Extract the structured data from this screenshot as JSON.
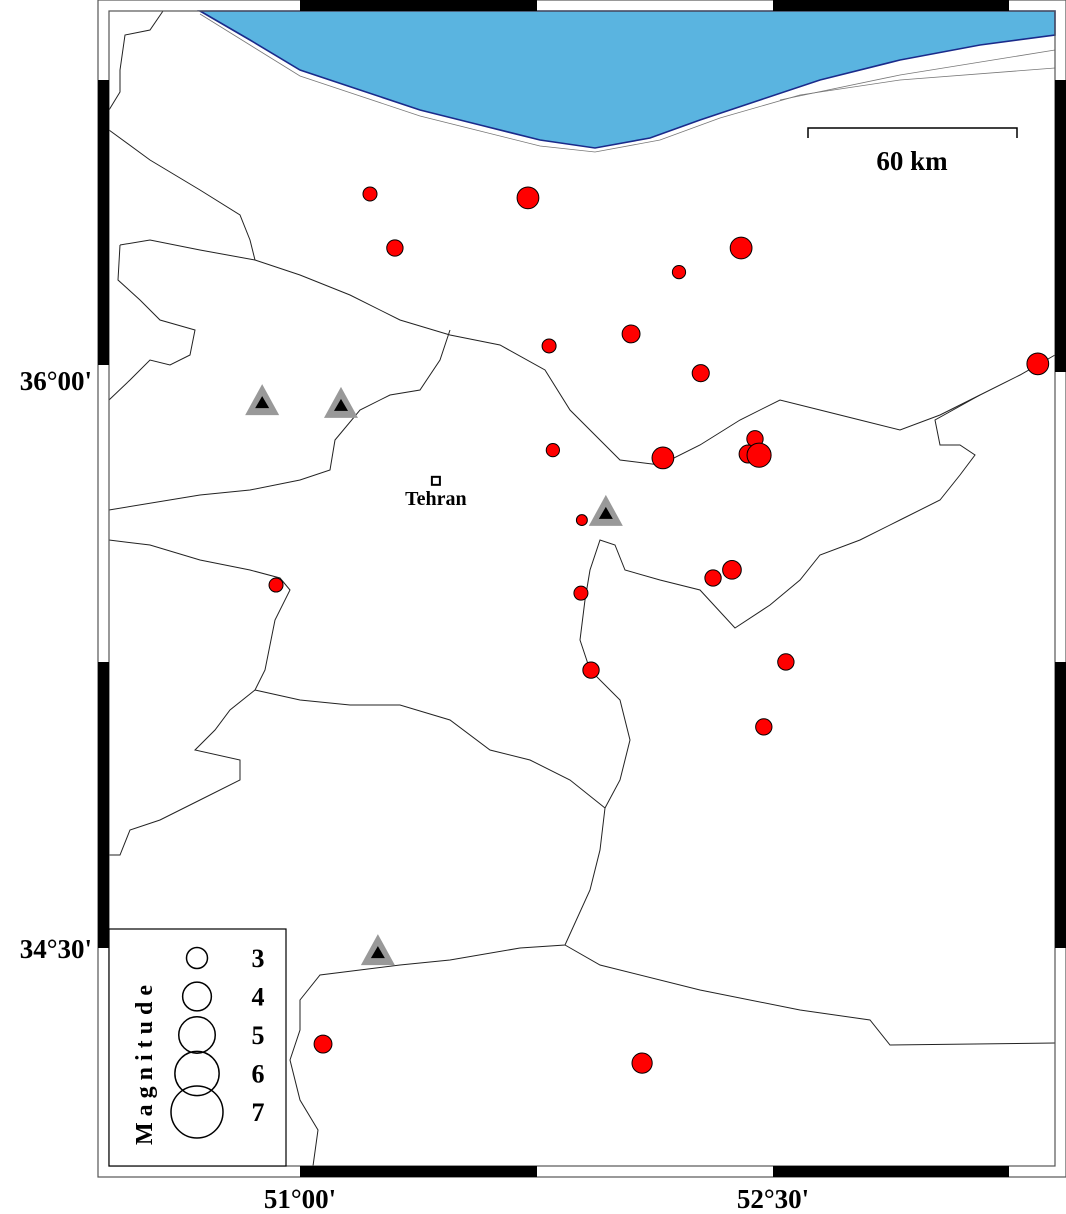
{
  "map": {
    "lon_ticks": [
      {
        "label": "51°00'",
        "value": 51.0
      },
      {
        "label": "52°30'",
        "value": 52.5
      }
    ],
    "lat_ticks": [
      {
        "label": "36°00'",
        "value": 36.0
      },
      {
        "label": "34°30'",
        "value": 34.5
      }
    ],
    "scale_bar": {
      "label": "60 km",
      "length_km": 60
    },
    "city": {
      "name": "Tehran",
      "lon": 51.431,
      "lat": 35.702
    },
    "sea_color": "#5ab4e0",
    "coast_color": "#1a2a8a",
    "event_color": "#ff0000",
    "station_color": "#999999",
    "events": [
      {
        "lon": 51.222,
        "lat": 36.44,
        "mag": 2.1
      },
      {
        "lon": 51.723,
        "lat": 36.43,
        "mag": 3.1
      },
      {
        "lon": 51.301,
        "lat": 36.301,
        "mag": 2.4
      },
      {
        "lon": 52.399,
        "lat": 36.301,
        "mag": 3.1
      },
      {
        "lon": 52.202,
        "lat": 36.239,
        "mag": 2.0
      },
      {
        "lon": 52.05,
        "lat": 36.08,
        "mag": 2.6
      },
      {
        "lon": 51.79,
        "lat": 36.049,
        "mag": 2.1
      },
      {
        "lon": 52.271,
        "lat": 35.979,
        "mag": 2.5
      },
      {
        "lon": 53.34,
        "lat": 36.003,
        "mag": 3.1
      },
      {
        "lon": 51.802,
        "lat": 35.781,
        "mag": 2.0
      },
      {
        "lon": 52.151,
        "lat": 35.761,
        "mag": 3.1
      },
      {
        "lon": 52.443,
        "lat": 35.81,
        "mag": 2.4
      },
      {
        "lon": 52.421,
        "lat": 35.771,
        "mag": 2.6
      },
      {
        "lon": 52.456,
        "lat": 35.768,
        "mag": 3.4
      },
      {
        "lon": 51.894,
        "lat": 35.601,
        "mag": 1.7
      },
      {
        "lon": 52.37,
        "lat": 35.473,
        "mag": 2.7
      },
      {
        "lon": 52.31,
        "lat": 35.452,
        "mag": 2.4
      },
      {
        "lon": 50.924,
        "lat": 35.434,
        "mag": 2.1
      },
      {
        "lon": 51.891,
        "lat": 35.413,
        "mag": 2.1
      },
      {
        "lon": 51.923,
        "lat": 35.215,
        "mag": 2.4
      },
      {
        "lon": 52.541,
        "lat": 35.236,
        "mag": 2.4
      },
      {
        "lon": 52.471,
        "lat": 35.069,
        "mag": 2.4
      },
      {
        "lon": 51.073,
        "lat": 34.253,
        "mag": 2.6
      },
      {
        "lon": 52.085,
        "lat": 34.204,
        "mag": 2.9
      }
    ],
    "stations": [
      {
        "lon": 50.88,
        "lat": 35.902
      },
      {
        "lon": 51.13,
        "lat": 35.895
      },
      {
        "lon": 51.97,
        "lat": 35.617
      },
      {
        "lon": 51.247,
        "lat": 34.487
      }
    ],
    "legend": {
      "title": "Magnitude",
      "entries": [
        {
          "label": "3",
          "mag": 3
        },
        {
          "label": "4",
          "mag": 4
        },
        {
          "label": "5",
          "mag": 5
        },
        {
          "label": "6",
          "mag": 6
        },
        {
          "label": "7",
          "mag": 7
        }
      ]
    }
  }
}
